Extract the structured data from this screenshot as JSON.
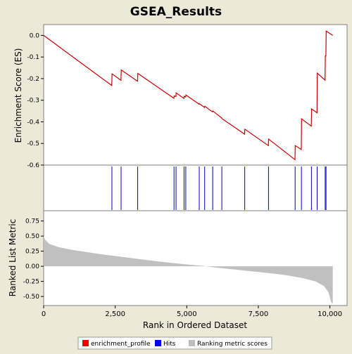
{
  "chart_data": {
    "type": "line",
    "title": "GSEA_Results",
    "xlabel": "Rank in Ordered Dataset",
    "xlim": [
      0,
      10600
    ],
    "x_ticks": [
      0,
      2500,
      5000,
      7500,
      10000
    ],
    "x_tick_labels": [
      "0",
      "2,500",
      "5,000",
      "7,500",
      "10,000"
    ],
    "panels": [
      {
        "id": "enrichment",
        "ylabel": "Enrichment Score (ES)",
        "ylim": [
          -0.6,
          0.05
        ],
        "y_ticks": [
          0.0,
          -0.1,
          -0.2,
          -0.3,
          -0.4,
          -0.5,
          -0.6
        ],
        "y_tick_labels": [
          "0.0",
          "-0.1",
          "-0.2",
          "-0.3",
          "-0.4",
          "-0.5",
          "-0.6"
        ],
        "series": [
          {
            "name": "enrichment_profile",
            "color": "#cc0000",
            "x": [
              0,
              2380,
              2390,
              2700,
              2710,
              3280,
              3290,
              4550,
              4560,
              4620,
              4630,
              4900,
              4910,
              4960,
              4970,
              5430,
              5440,
              5620,
              5630,
              5900,
              5910,
              6220,
              6230,
              7020,
              7030,
              7850,
              7860,
              8780,
              8790,
              9000,
              9010,
              9350,
              9360,
              9550,
              9560,
              9830,
              9840,
              9860,
              9870,
              10100
            ],
            "y": [
              0.0,
              -0.232,
              -0.178,
              -0.208,
              -0.16,
              -0.212,
              -0.176,
              -0.291,
              -0.28,
              -0.283,
              -0.266,
              -0.292,
              -0.282,
              -0.285,
              -0.276,
              -0.318,
              -0.316,
              -0.333,
              -0.328,
              -0.354,
              -0.35,
              -0.382,
              -0.385,
              -0.457,
              -0.434,
              -0.51,
              -0.48,
              -0.575,
              -0.51,
              -0.528,
              -0.386,
              -0.42,
              -0.34,
              -0.358,
              -0.175,
              -0.207,
              -0.095,
              -0.095,
              0.02,
              0.0
            ]
          }
        ]
      },
      {
        "id": "hits",
        "series": [
          {
            "name": "Hits",
            "color": "#0000cc",
            "x": [
              2385,
              2705,
              3285,
              4555,
              4625,
              4905,
              4965,
              5435,
              5625,
              5905,
              6225,
              7025,
              7855,
              8785,
              9005,
              9355,
              9555,
              9835,
              9865
            ]
          }
        ]
      },
      {
        "id": "ranking",
        "ylabel": "Ranked List Metric",
        "ylim": [
          -0.65,
          0.92
        ],
        "y_ticks": [
          0.75,
          0.5,
          0.25,
          0.0,
          -0.25,
          -0.5
        ],
        "y_tick_labels": [
          "0.75",
          "0.50",
          "0.25",
          "0.00",
          "-0.25",
          "-0.50"
        ],
        "series": [
          {
            "name": "Ranking metric scores",
            "color": "#c0c0c0",
            "x": [
              0,
              50,
              200,
              500,
              1000,
              2000,
              3000,
              4000,
              5000,
              5500,
              6000,
              7000,
              8000,
              8500,
              9000,
              9500,
              9800,
              9950,
              10050,
              10100
            ],
            "y": [
              0.5,
              0.44,
              0.37,
              0.32,
              0.27,
              0.2,
              0.14,
              0.08,
              0.03,
              0.01,
              -0.02,
              -0.07,
              -0.12,
              -0.15,
              -0.19,
              -0.25,
              -0.33,
              -0.43,
              -0.6,
              -0.62
            ]
          }
        ]
      }
    ],
    "legend": {
      "placement": "bottom",
      "items": [
        {
          "label": "enrichment_profile",
          "color": "#ee0000"
        },
        {
          "label": "Hits",
          "color": "#0000ee"
        },
        {
          "label": "Ranking metric scores",
          "color": "#bdbdbd"
        }
      ]
    }
  }
}
